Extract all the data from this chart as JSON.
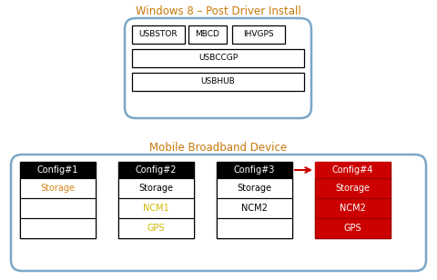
{
  "title_top": "Windows 8 – Post Driver Install",
  "title_bottom": "Mobile Broadband Device",
  "title_color": "#c8780a",
  "top_box_color": "#7ba7c8",
  "bottom_box_color": "#7ba7c8",
  "win8_items_row1": [
    "USBSTOR",
    "MBCD",
    "IHVGPS"
  ],
  "win8_items_row2": "USBCCGP",
  "win8_items_row3": "USBHUB",
  "configs": [
    "Config#1",
    "Config#2",
    "Config#3",
    "Config#4"
  ],
  "config_items": {
    "Config#1": [
      "Storage",
      "",
      ""
    ],
    "Config#2": [
      "Storage",
      "NCM1",
      "GPS"
    ],
    "Config#3": [
      "Storage",
      "NCM2",
      ""
    ],
    "Config#4": [
      "Storage",
      "NCM2",
      "GPS"
    ]
  },
  "storage_color_cfg1": "#d4851a",
  "ncm1_gps_color": "#d4b800",
  "config4_bg": "#cc0000",
  "config4_header_bg": "#cc0000",
  "normal_header_bg": "#000000",
  "arrow_color": "#cc0000",
  "bg_color": "#ffffff",
  "fig_w": 4.8,
  "fig_h": 3.08,
  "dpi": 100
}
